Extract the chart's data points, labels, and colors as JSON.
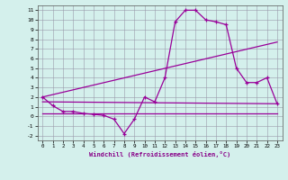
{
  "xlabel": "Windchill (Refroidissement éolien,°C)",
  "bg_color": "#d4f0ec",
  "grid_color": "#9999aa",
  "line_color": "#990099",
  "xlim": [
    -0.5,
    23.5
  ],
  "ylim": [
    -2.5,
    11.5
  ],
  "xticks": [
    0,
    1,
    2,
    3,
    4,
    5,
    6,
    7,
    8,
    9,
    10,
    11,
    12,
    13,
    14,
    15,
    16,
    17,
    18,
    19,
    20,
    21,
    22,
    23
  ],
  "yticks": [
    -2,
    -1,
    0,
    1,
    2,
    3,
    4,
    5,
    6,
    7,
    8,
    9,
    10,
    11
  ],
  "line1_x": [
    0,
    1,
    2,
    3,
    4,
    5,
    6,
    7,
    8,
    9,
    10,
    11,
    12,
    13,
    14,
    15,
    16,
    17,
    18,
    19,
    20,
    21,
    22,
    23
  ],
  "line1_y": [
    2.0,
    1.1,
    0.5,
    0.5,
    0.3,
    0.2,
    0.1,
    -0.3,
    -1.8,
    -0.3,
    2.0,
    1.5,
    4.0,
    9.8,
    11.0,
    11.0,
    10.0,
    9.8,
    9.5,
    5.0,
    3.5,
    3.5,
    4.0,
    1.3
  ],
  "line2_x": [
    0,
    23
  ],
  "line2_y": [
    2.0,
    7.7
  ],
  "line3_x": [
    0,
    23
  ],
  "line3_y": [
    1.5,
    1.3
  ],
  "line4_x": [
    0,
    23
  ],
  "line4_y": [
    0.3,
    0.3
  ]
}
